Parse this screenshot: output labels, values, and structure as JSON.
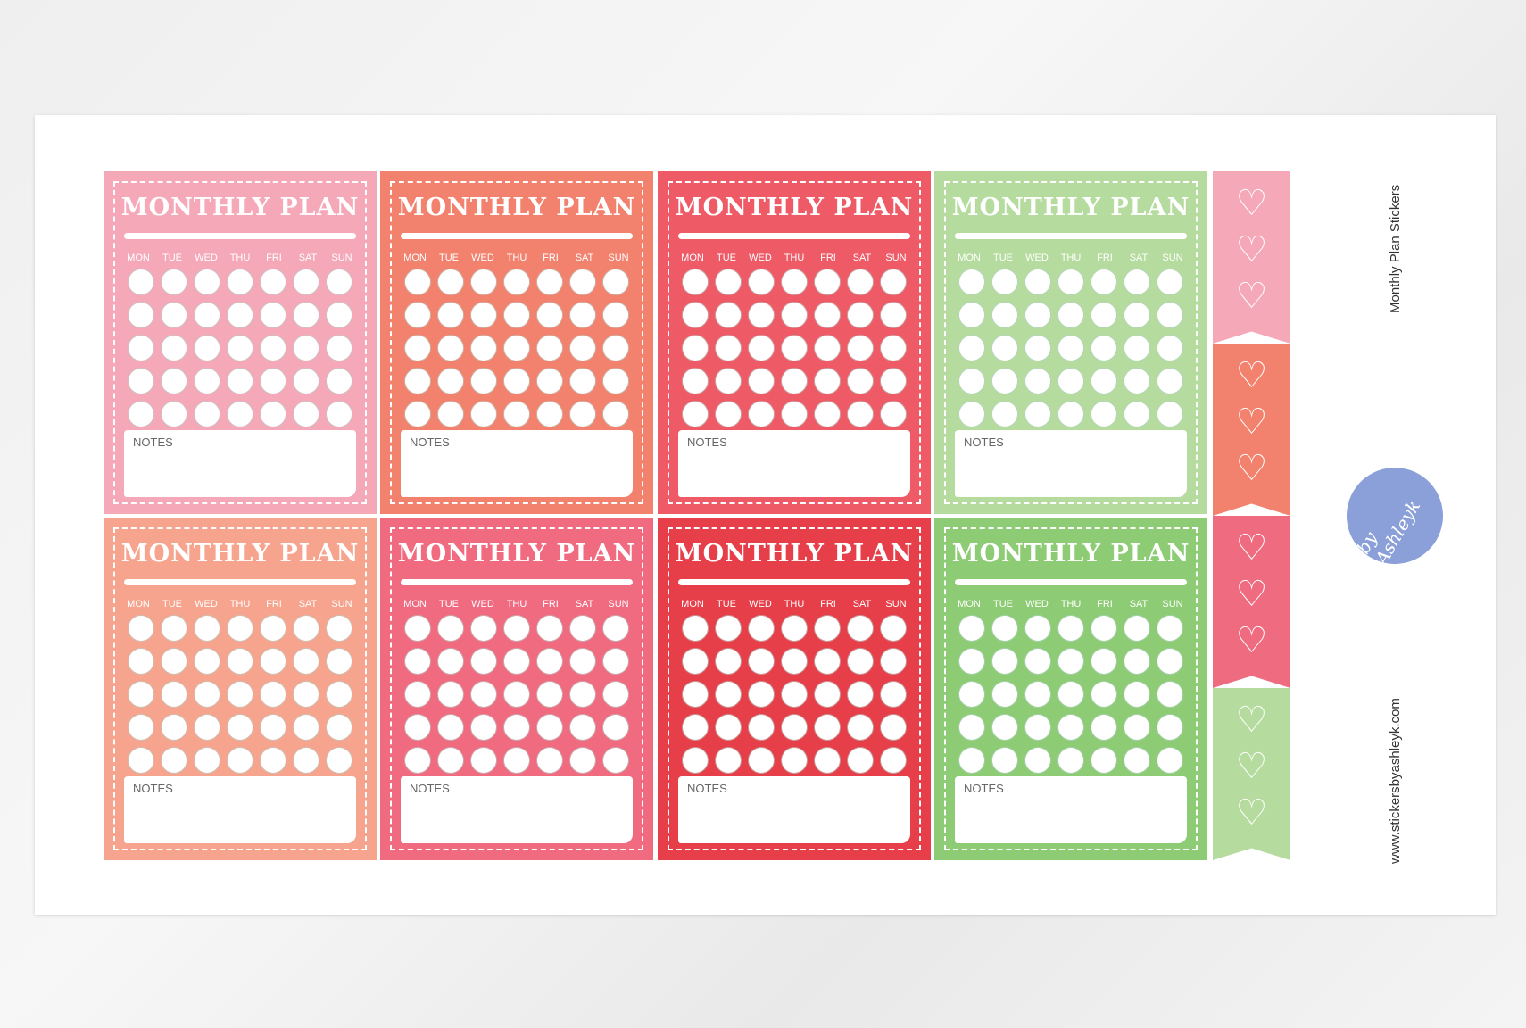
{
  "cards": [
    {
      "color": "#f5a8b8",
      "title": "MONTHLY PLAN",
      "notes": "NOTES"
    },
    {
      "color": "#f2826e",
      "title": "MONTHLY PLAN",
      "notes": "NOTES"
    },
    {
      "color": "#ee5a66",
      "title": "MONTHLY PLAN",
      "notes": "NOTES"
    },
    {
      "color": "#b5dc9e",
      "title": "MONTHLY PLAN",
      "notes": "NOTES"
    },
    {
      "color": "#f7a48e",
      "title": "MONTHLY PLAN",
      "notes": "NOTES"
    },
    {
      "color": "#f06a80",
      "title": "MONTHLY PLAN",
      "notes": "NOTES"
    },
    {
      "color": "#e63f4a",
      "title": "MONTHLY PLAN",
      "notes": "NOTES"
    },
    {
      "color": "#8dcc74",
      "title": "MONTHLY PLAN",
      "notes": "NOTES"
    }
  ],
  "days": [
    "MON",
    "TUE",
    "WED",
    "THU",
    "FRI",
    "SAT",
    "SUN"
  ],
  "circle_rows": 5,
  "flags": [
    {
      "color": "#f5a8b8",
      "icon": "heart-icon"
    },
    {
      "color": "#f2826e",
      "icon": "heart-icon"
    },
    {
      "color": "#ef6b80",
      "icon": "heart-icon"
    },
    {
      "color": "#b5dc9e",
      "icon": "heart-icon"
    }
  ],
  "side": {
    "product_name": "Monthly Plan Stickers",
    "website": "www.stickersbyashleyk.com",
    "logo_text": "by Ashleyk",
    "logo_color": "#8ba0d8"
  }
}
